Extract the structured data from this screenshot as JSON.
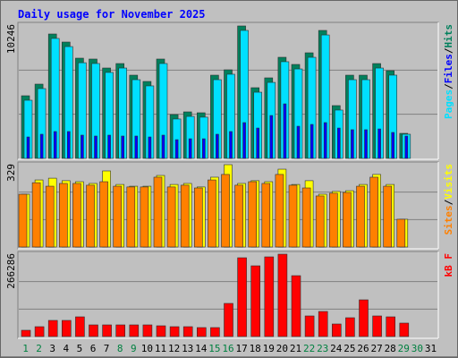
{
  "chart_data": [
    {
      "type": "bar",
      "title": "Daily usage for November 2025",
      "ylim": [
        0,
        10246
      ],
      "yticks": [
        10246
      ],
      "separator": "/",
      "series": [
        {
          "name": "Hits",
          "color": "#00805c",
          "values": [
            4846,
            5746,
            9623,
            9000,
            7754,
            7685,
            6992,
            7338,
            6438,
            5954,
            7685,
            3392,
            3600,
            3531,
            6438,
            6854,
            10246,
            5469,
            6231,
            7823,
            7269,
            8169,
            9900,
            4085,
            6438,
            6438,
            7338,
            6785,
            1938,
            null,
            null
          ]
        },
        {
          "name": "Files",
          "color": "#0000ff",
          "values": [
            1660,
            1870,
            2080,
            2080,
            1800,
            1730,
            1800,
            1730,
            1730,
            1660,
            1800,
            1450,
            1520,
            1520,
            1870,
            2080,
            2770,
            2350,
            3320,
            4220,
            2490,
            2630,
            2770,
            2350,
            2220,
            2220,
            2280,
            2010,
            1730,
            null,
            null
          ]
        },
        {
          "name": "Pages",
          "color": "#00e0ff",
          "values": [
            4500,
            5400,
            9280,
            8650,
            7400,
            7340,
            6650,
            6990,
            6090,
            5610,
            7340,
            3050,
            3250,
            3190,
            6090,
            6510,
            9900,
            5120,
            5880,
            7480,
            6920,
            7820,
            9550,
            3740,
            6090,
            6090,
            6990,
            6440,
            1870,
            null,
            null
          ]
        }
      ]
    },
    {
      "type": "bar",
      "ylim": [
        0,
        329
      ],
      "yticks": [
        329
      ],
      "series": [
        {
          "name": "Visits",
          "color": "#ffff00",
          "values": [
            211,
            268,
            275,
            265,
            261,
            254,
            304,
            250,
            243,
            243,
            286,
            250,
            254,
            240,
            279,
            329,
            254,
            265,
            261,
            311,
            250,
            265,
            211,
            222,
            225,
            250,
            290,
            250,
            111,
            null,
            null
          ]
        },
        {
          "name": "Sites",
          "color": "#ff8000",
          "values": [
            211,
            257,
            243,
            254,
            254,
            247,
            261,
            243,
            240,
            240,
            279,
            240,
            247,
            236,
            268,
            290,
            247,
            261,
            254,
            290,
            247,
            236,
            204,
            215,
            218,
            243,
            279,
            243,
            111,
            null,
            null
          ]
        }
      ]
    },
    {
      "type": "bar",
      "ylim": [
        0,
        266286
      ],
      "yticks": [
        266286
      ],
      "series": [
        {
          "name": "kB F",
          "color": "#ff0000",
          "values": [
            20261,
            31838,
            52099,
            52099,
            63677,
            37627,
            37627,
            37627,
            37627,
            37627,
            34733,
            31838,
            31838,
            28944,
            28944,
            107093,
            254708,
            228658,
            257602,
            266286,
            196820,
            66572,
            81044,
            40521,
            60783,
            118671,
            66572,
            63677,
            43416,
            null,
            null
          ]
        }
      ],
      "categories": [
        "1",
        "2",
        "3",
        "4",
        "5",
        "6",
        "7",
        "8",
        "9",
        "10",
        "11",
        "12",
        "13",
        "14",
        "15",
        "16",
        "17",
        "18",
        "19",
        "20",
        "21",
        "22",
        "23",
        "24",
        "25",
        "26",
        "27",
        "28",
        "29",
        "30",
        "31"
      ],
      "category_colors": [
        "#008040",
        "#008040",
        "#000000",
        "#000000",
        "#000000",
        "#000000",
        "#000000",
        "#008040",
        "#008040",
        "#000000",
        "#000000",
        "#000000",
        "#000000",
        "#000000",
        "#008040",
        "#008040",
        "#000000",
        "#000000",
        "#000000",
        "#000000",
        "#000000",
        "#008040",
        "#008040",
        "#000000",
        "#000000",
        "#000000",
        "#000000",
        "#000000",
        "#008040",
        "#008040",
        "#000000"
      ]
    }
  ]
}
